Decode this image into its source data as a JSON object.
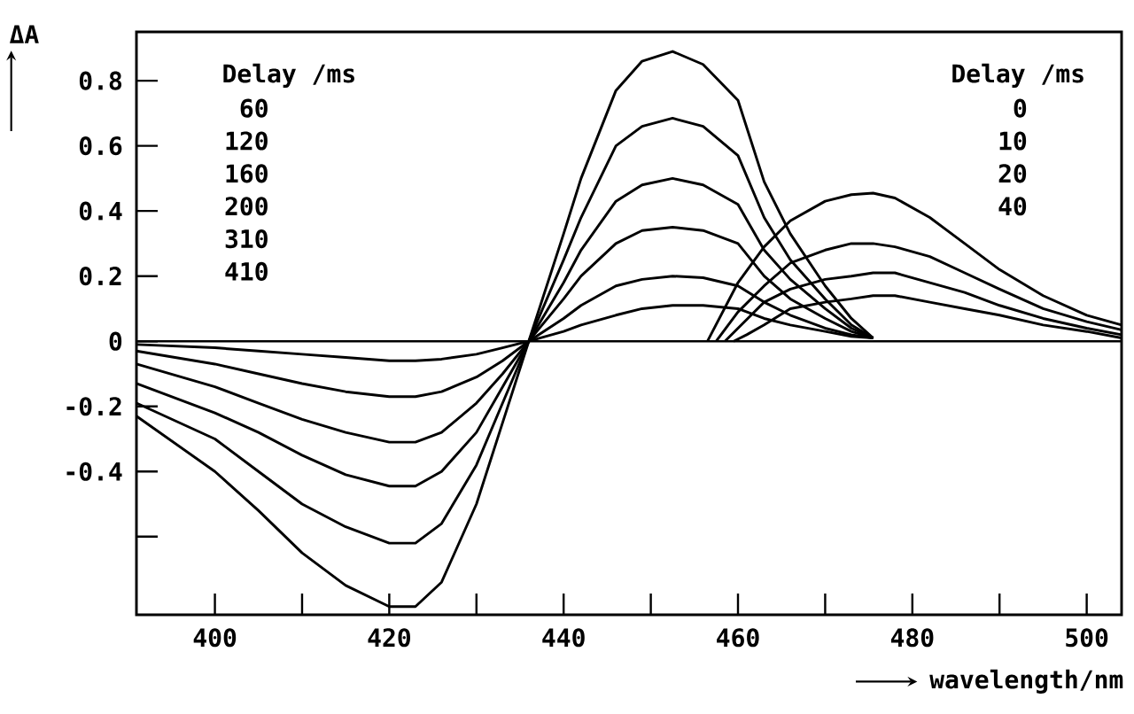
{
  "chart_data": {
    "type": "line",
    "xlabel": "wavelength/nm",
    "ylabel": "ΔA",
    "xlim": [
      391,
      504
    ],
    "ylim": [
      -0.84,
      0.95
    ],
    "xticks": [
      400,
      {
        "value": 410,
        "label": null
      },
      420,
      {
        "value": 430,
        "label": null
      },
      440,
      {
        "value": 450,
        "label": null
      },
      460,
      {
        "value": 470,
        "label": null
      },
      480,
      {
        "value": 490,
        "label": null
      },
      500
    ],
    "yticks": [
      {
        "value": -0.6,
        "label": null
      },
      -0.4,
      -0.2,
      0,
      0.2,
      0.4,
      0.6,
      0.8
    ],
    "marker": "none",
    "line_style": "solid",
    "ref_lines": [
      {
        "axis": "y",
        "value": 0,
        "color": "#000000"
      }
    ],
    "annotations": [
      "Delay /ms",
      "60",
      "120",
      "160",
      "200",
      "310",
      "410",
      "Delay /ms",
      "0",
      "10",
      "20",
      "40"
    ],
    "series": [
      {
        "color": "#000000",
        "x": [
          391,
          400,
          405,
          410,
          415,
          420,
          423,
          426,
          430,
          433,
          436,
          440,
          442,
          446,
          449,
          452.5,
          456,
          460,
          463,
          466,
          470,
          473,
          475.5
        ],
        "values": [
          -0.23,
          -0.4,
          -0.52,
          -0.65,
          -0.75,
          -0.815,
          -0.815,
          -0.74,
          -0.5,
          -0.25,
          0,
          0.33,
          0.5,
          0.77,
          0.86,
          0.89,
          0.85,
          0.74,
          0.49,
          0.33,
          0.17,
          0.07,
          0.01
        ]
      },
      {
        "color": "#000000",
        "x": [
          391,
          400,
          405,
          410,
          415,
          420,
          423,
          426,
          430,
          433,
          436,
          440,
          442,
          446,
          449,
          452.5,
          456,
          460,
          463,
          466,
          470,
          473,
          475.5
        ],
        "values": [
          -0.19,
          -0.3,
          -0.4,
          -0.5,
          -0.57,
          -0.62,
          -0.62,
          -0.56,
          -0.38,
          -0.19,
          0,
          0.25,
          0.38,
          0.6,
          0.66,
          0.685,
          0.66,
          0.57,
          0.38,
          0.25,
          0.13,
          0.05,
          0.01
        ]
      },
      {
        "color": "#000000",
        "x": [
          391,
          400,
          405,
          410,
          415,
          420,
          423,
          426,
          430,
          433,
          436,
          440,
          442,
          446,
          449,
          452.5,
          456,
          460,
          463,
          466,
          470,
          473,
          475.5
        ],
        "values": [
          -0.13,
          -0.22,
          -0.28,
          -0.35,
          -0.41,
          -0.445,
          -0.445,
          -0.4,
          -0.28,
          -0.14,
          0,
          0.18,
          0.28,
          0.43,
          0.48,
          0.5,
          0.48,
          0.42,
          0.28,
          0.19,
          0.1,
          0.04,
          0.01
        ]
      },
      {
        "color": "#000000",
        "x": [
          391,
          400,
          405,
          410,
          415,
          420,
          423,
          426,
          430,
          433,
          436,
          440,
          442,
          446,
          449,
          452.5,
          456,
          460,
          463,
          466,
          470,
          473,
          475.5
        ],
        "values": [
          -0.07,
          -0.14,
          -0.19,
          -0.24,
          -0.28,
          -0.31,
          -0.31,
          -0.28,
          -0.19,
          -0.1,
          0,
          0.13,
          0.2,
          0.3,
          0.34,
          0.35,
          0.34,
          0.3,
          0.2,
          0.13,
          0.07,
          0.03,
          0.01
        ]
      },
      {
        "color": "#000000",
        "x": [
          391,
          400,
          405,
          410,
          415,
          420,
          423,
          426,
          430,
          433,
          436,
          440,
          442,
          446,
          449,
          452.5,
          456,
          460,
          463,
          466,
          470,
          473,
          475.5
        ],
        "values": [
          -0.03,
          -0.07,
          -0.1,
          -0.13,
          -0.155,
          -0.17,
          -0.17,
          -0.155,
          -0.11,
          -0.06,
          0,
          0.07,
          0.11,
          0.17,
          0.19,
          0.2,
          0.195,
          0.17,
          0.12,
          0.08,
          0.04,
          0.02,
          0.01
        ]
      },
      {
        "color": "#000000",
        "x": [
          391,
          400,
          405,
          410,
          415,
          420,
          423,
          426,
          430,
          433,
          436,
          440,
          442,
          446,
          449,
          452.5,
          456,
          460,
          463,
          466,
          470,
          473,
          475.5
        ],
        "values": [
          -0.01,
          -0.02,
          -0.03,
          -0.04,
          -0.05,
          -0.06,
          -0.06,
          -0.055,
          -0.04,
          -0.02,
          0,
          0.03,
          0.05,
          0.08,
          0.1,
          0.11,
          0.11,
          0.1,
          0.07,
          0.05,
          0.03,
          0.015,
          0.01
        ]
      },
      {
        "color": "#000000",
        "x": [
          456.5,
          460,
          463,
          466,
          470,
          473,
          475.5,
          478,
          482,
          486,
          490,
          495,
          500,
          504
        ],
        "values": [
          0,
          0.18,
          0.29,
          0.37,
          0.43,
          0.45,
          0.455,
          0.44,
          0.38,
          0.3,
          0.22,
          0.14,
          0.08,
          0.05
        ]
      },
      {
        "color": "#000000",
        "x": [
          457.5,
          460,
          463,
          466,
          470,
          473,
          475.5,
          478,
          482,
          486,
          490,
          495,
          500,
          504
        ],
        "values": [
          0,
          0.09,
          0.17,
          0.24,
          0.28,
          0.3,
          0.3,
          0.29,
          0.26,
          0.21,
          0.16,
          0.1,
          0.06,
          0.035
        ]
      },
      {
        "color": "#000000",
        "x": [
          458.5,
          460,
          463,
          466,
          470,
          473,
          475.5,
          478,
          482,
          486,
          490,
          495,
          500,
          504
        ],
        "values": [
          0,
          0.04,
          0.12,
          0.16,
          0.19,
          0.2,
          0.21,
          0.21,
          0.18,
          0.15,
          0.11,
          0.07,
          0.04,
          0.02
        ]
      },
      {
        "color": "#000000",
        "x": [
          459.5,
          461,
          463,
          466,
          470,
          473,
          475.5,
          478,
          482,
          486,
          490,
          495,
          500,
          504
        ],
        "values": [
          0,
          0.02,
          0.05,
          0.1,
          0.12,
          0.13,
          0.14,
          0.14,
          0.12,
          0.1,
          0.08,
          0.05,
          0.03,
          0.01
        ]
      }
    ]
  }
}
